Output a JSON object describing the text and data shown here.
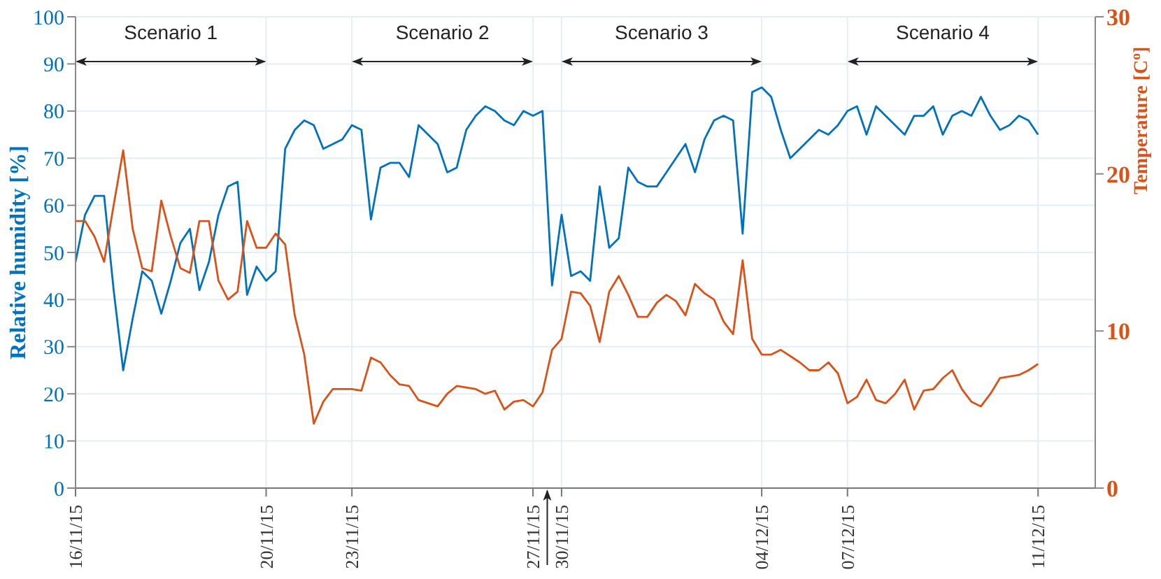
{
  "chart_data": {
    "type": "line",
    "ylabel": "Relative humidity [%]",
    "y2label": "Temperature [C$^{o}$]",
    "annotations": [
      "Scenario 1",
      "Scenario 2",
      "Scenario 3",
      "Scenario 4"
    ],
    "categories": [
      "16/11/15",
      null,
      null,
      null,
      null,
      null,
      null,
      null,
      null,
      null,
      null,
      null,
      null,
      null,
      null,
      null,
      null,
      null,
      null,
      null,
      "20/11/15",
      null,
      null,
      null,
      null,
      null,
      null,
      null,
      null,
      "23/11/15",
      null,
      null,
      null,
      null,
      null,
      null,
      null,
      null,
      null,
      null,
      null,
      null,
      null,
      null,
      null,
      null,
      null,
      null,
      "27/11/15",
      null,
      null,
      "30/11/15",
      null,
      null,
      null,
      null,
      null,
      null,
      null,
      null,
      null,
      null,
      null,
      null,
      null,
      null,
      null,
      null,
      null,
      null,
      null,
      null,
      "04/12/15",
      null,
      null,
      null,
      null,
      null,
      null,
      null,
      null,
      "07/12/15",
      null,
      null,
      null,
      null,
      null,
      null,
      null,
      null,
      null,
      null,
      null,
      null,
      null,
      null,
      null,
      null,
      null,
      null,
      null,
      "11/12/15",
      null,
      null,
      null,
      null,
      null,
      null
    ],
    "ylim": [
      0,
      100
    ],
    "yticks": [
      0,
      10,
      20,
      30,
      40,
      50,
      60,
      70,
      80,
      90,
      100
    ],
    "y2lim": [
      0,
      30
    ],
    "y2ticks": [
      0,
      10,
      20,
      30
    ],
    "grid": true,
    "marker": "none",
    "line_style": "solid",
    "series": [
      {
        "color": "#0072bd",
        "values": [
          48,
          58,
          62,
          62,
          42,
          25,
          36,
          46,
          44,
          37,
          44,
          52,
          55,
          42,
          48,
          58,
          64,
          65,
          41,
          47,
          44,
          46,
          72,
          76,
          78,
          77,
          72,
          73,
          74,
          77,
          76,
          57,
          68,
          69,
          69,
          66,
          77,
          75,
          73,
          67,
          68,
          76,
          79,
          81,
          80,
          78,
          77,
          80,
          79,
          80,
          43,
          58,
          45,
          46,
          44,
          64,
          51,
          53,
          68,
          65,
          64,
          64,
          67,
          70,
          73,
          67,
          74,
          78,
          79,
          78,
          54,
          84,
          85,
          83,
          76,
          70,
          72,
          74,
          76,
          75,
          77,
          80,
          81,
          75,
          81,
          79,
          77,
          75,
          79,
          79,
          81,
          75,
          79,
          80,
          79,
          83,
          79,
          76,
          77,
          79,
          78,
          75,
          null,
          null,
          null,
          null,
          null,
          null
        ]
      },
      {
        "color": "#d95319",
        "axis": "y2",
        "values": [
          17,
          17,
          16,
          14.4,
          18,
          21.5,
          16.5,
          14,
          13.8,
          18.3,
          16,
          14,
          13.7,
          17,
          17,
          13.2,
          12,
          12.5,
          17,
          15.3,
          15.3,
          16.2,
          15.5,
          11,
          8.5,
          4.1,
          5.5,
          6.3,
          6.3,
          6.3,
          6.2,
          8.3,
          8,
          7.2,
          6.6,
          6.5,
          5.6,
          5.4,
          5.2,
          6,
          6.5,
          6.4,
          6.3,
          6,
          6.2,
          5,
          5.5,
          5.6,
          5.2,
          6.1,
          8.8,
          9.5,
          12.5,
          12.4,
          11.6,
          9.3,
          12.5,
          13.5,
          12.3,
          10.9,
          10.9,
          11.8,
          12.3,
          11.9,
          11,
          13,
          12.4,
          12,
          10.6,
          9.8,
          14.5,
          9.5,
          8.5,
          8.5,
          8.8,
          8.4,
          8,
          7.5,
          7.5,
          8,
          7.3,
          5.4,
          5.8,
          6.9,
          5.6,
          5.4,
          6,
          6.9,
          5,
          6.2,
          6.3,
          7,
          7.5,
          6.3,
          5.5,
          5.2,
          6,
          7,
          7.1,
          7.2,
          7.5,
          7.9,
          null,
          null,
          null,
          null,
          null,
          null
        ]
      }
    ]
  }
}
